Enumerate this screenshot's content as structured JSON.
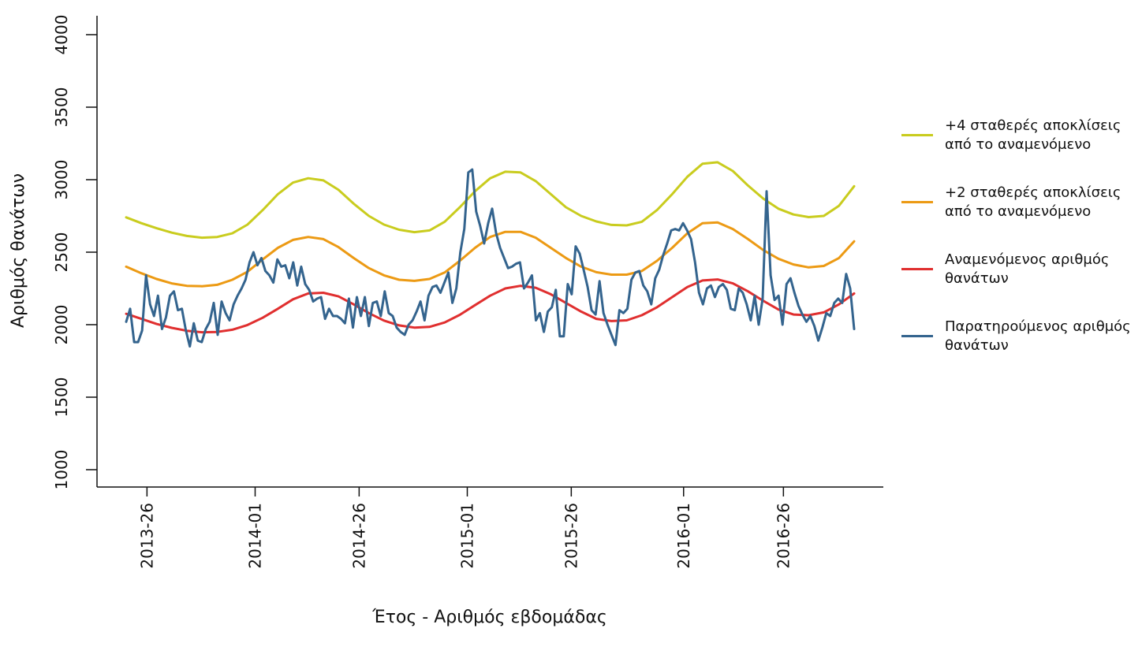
{
  "chart_data": {
    "type": "line",
    "xlabel": "Έτος - Αριθμός εβδομάδας",
    "ylabel": "Αριθμός θανάτων",
    "ylim": [
      1000,
      4000
    ],
    "yticks": [
      1000,
      1500,
      2000,
      2500,
      3000,
      3500,
      4000
    ],
    "xticks": [
      {
        "label": "2013-26",
        "week_index": 5
      },
      {
        "label": "2014-01",
        "week_index": 31
      },
      {
        "label": "2014-26",
        "week_index": 56
      },
      {
        "label": "2015-01",
        "week_index": 82
      },
      {
        "label": "2015-26",
        "week_index": 107
      },
      {
        "label": "2016-01",
        "week_index": 134
      },
      {
        "label": "2016-26",
        "week_index": 158
      }
    ],
    "legend_position": "right",
    "grid": false,
    "series": [
      {
        "name": "+4 σταθερές αποκλίσεις\nαπό το αναμενόμενο",
        "color": "#c9cc1e",
        "values": [
          2740,
          2700,
          2665,
          2635,
          2612,
          2600,
          2605,
          2630,
          2690,
          2790,
          2900,
          2980,
          3010,
          2995,
          2930,
          2835,
          2750,
          2690,
          2655,
          2638,
          2650,
          2710,
          2810,
          2920,
          3010,
          3055,
          3050,
          2990,
          2900,
          2810,
          2750,
          2712,
          2688,
          2685,
          2710,
          2790,
          2900,
          3020,
          3110,
          3120,
          3060,
          2960,
          2870,
          2800,
          2760,
          2742,
          2750,
          2820,
          2955
        ]
      },
      {
        "name": "+2 σταθερές αποκλίσεις\nαπό το αναμενόμενο",
        "color": "#ec9a14",
        "values": [
          2400,
          2355,
          2315,
          2285,
          2268,
          2265,
          2275,
          2310,
          2365,
          2450,
          2530,
          2585,
          2605,
          2590,
          2535,
          2460,
          2390,
          2340,
          2310,
          2302,
          2315,
          2360,
          2440,
          2530,
          2605,
          2640,
          2640,
          2600,
          2530,
          2460,
          2400,
          2362,
          2345,
          2345,
          2370,
          2440,
          2530,
          2630,
          2700,
          2705,
          2660,
          2590,
          2515,
          2455,
          2415,
          2395,
          2405,
          2460,
          2575
        ]
      },
      {
        "name": "Αναμενόμενος αριθμός\nθανάτων",
        "color": "#e02f2f",
        "values": [
          2075,
          2040,
          2005,
          1978,
          1958,
          1948,
          1950,
          1965,
          1998,
          2048,
          2110,
          2175,
          2215,
          2220,
          2195,
          2140,
          2080,
          2028,
          1995,
          1980,
          1985,
          2015,
          2068,
          2135,
          2200,
          2250,
          2268,
          2255,
          2210,
          2150,
          2090,
          2040,
          2025,
          2030,
          2065,
          2120,
          2190,
          2260,
          2305,
          2312,
          2285,
          2230,
          2165,
          2105,
          2070,
          2065,
          2085,
          2140,
          2215
        ]
      },
      {
        "name": "Παρατηρούμενος αριθμός\nθανάτων",
        "color": "#34648e",
        "values": [
          2020,
          2110,
          1880,
          1880,
          1960,
          2340,
          2140,
          2060,
          2200,
          1970,
          2050,
          2200,
          2230,
          2100,
          2110,
          1960,
          1850,
          2010,
          1890,
          1880,
          1970,
          2020,
          2150,
          1930,
          2160,
          2080,
          2030,
          2140,
          2200,
          2250,
          2310,
          2430,
          2500,
          2410,
          2460,
          2370,
          2340,
          2290,
          2450,
          2400,
          2410,
          2320,
          2430,
          2270,
          2400,
          2280,
          2240,
          2160,
          2180,
          2190,
          2040,
          2110,
          2060,
          2060,
          2040,
          2010,
          2180,
          1980,
          2190,
          2060,
          2190,
          1990,
          2150,
          2160,
          2060,
          2230,
          2080,
          2060,
          1980,
          1950,
          1930,
          2000,
          2030,
          2090,
          2160,
          2030,
          2200,
          2260,
          2270,
          2220,
          2290,
          2360,
          2150,
          2250,
          2500,
          2660,
          3050,
          3070,
          2780,
          2680,
          2560,
          2700,
          2800,
          2630,
          2530,
          2460,
          2390,
          2400,
          2420,
          2430,
          2250,
          2290,
          2340,
          2030,
          2080,
          1950,
          2090,
          2120,
          2240,
          1920,
          1920,
          2280,
          2210,
          2540,
          2490,
          2380,
          2260,
          2100,
          2070,
          2300,
          2080,
          2000,
          1930,
          1860,
          2100,
          2080,
          2110,
          2310,
          2360,
          2370,
          2270,
          2230,
          2140,
          2320,
          2380,
          2480,
          2560,
          2650,
          2660,
          2650,
          2700,
          2650,
          2590,
          2430,
          2220,
          2140,
          2250,
          2270,
          2190,
          2260,
          2280,
          2240,
          2110,
          2100,
          2250,
          2220,
          2140,
          2030,
          2200,
          2000,
          2180,
          2920,
          2340,
          2170,
          2200,
          2000,
          2280,
          2320,
          2220,
          2130,
          2070,
          2020,
          2060,
          1990,
          1890,
          1980,
          2080,
          2060,
          2150,
          2180,
          2150,
          2350,
          2250,
          1970
        ]
      }
    ]
  }
}
